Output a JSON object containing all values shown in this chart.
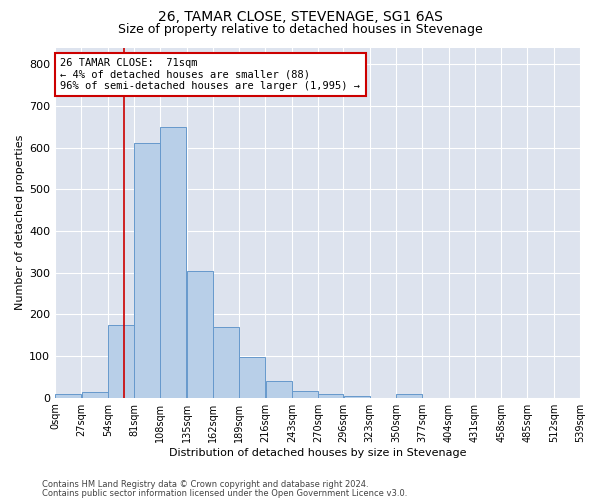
{
  "title": "26, TAMAR CLOSE, STEVENAGE, SG1 6AS",
  "subtitle": "Size of property relative to detached houses in Stevenage",
  "xlabel": "Distribution of detached houses by size in Stevenage",
  "ylabel": "Number of detached properties",
  "bar_color": "#b8cfe8",
  "bar_edge_color": "#6699cc",
  "background_color": "#dde3ee",
  "grid_color": "white",
  "annotation_box_color": "#cc0000",
  "vline_color": "#cc0000",
  "vline_x": 71,
  "bin_edges": [
    0,
    27,
    54,
    81,
    108,
    135,
    162,
    189,
    216,
    243,
    270,
    296,
    323,
    350,
    377,
    404,
    431,
    458,
    485,
    512,
    539
  ],
  "bar_heights": [
    8,
    14,
    175,
    610,
    650,
    305,
    170,
    97,
    40,
    15,
    8,
    5,
    0,
    8,
    0,
    0,
    0,
    0,
    0,
    0
  ],
  "annotation_title": "26 TAMAR CLOSE:  71sqm",
  "annotation_line1": "← 4% of detached houses are smaller (88)",
  "annotation_line2": "96% of semi-detached houses are larger (1,995) →",
  "ylim": [
    0,
    840
  ],
  "yticks": [
    0,
    100,
    200,
    300,
    400,
    500,
    600,
    700,
    800
  ],
  "footer_line1": "Contains HM Land Registry data © Crown copyright and database right 2024.",
  "footer_line2": "Contains public sector information licensed under the Open Government Licence v3.0.",
  "tick_labels": [
    "0sqm",
    "27sqm",
    "54sqm",
    "81sqm",
    "108sqm",
    "135sqm",
    "162sqm",
    "189sqm",
    "216sqm",
    "243sqm",
    "270sqm",
    "296sqm",
    "323sqm",
    "350sqm",
    "377sqm",
    "404sqm",
    "431sqm",
    "458sqm",
    "485sqm",
    "512sqm",
    "539sqm"
  ],
  "title_fontsize": 10,
  "subtitle_fontsize": 9,
  "ylabel_fontsize": 8,
  "xlabel_fontsize": 8,
  "tick_fontsize": 7,
  "ytick_fontsize": 8,
  "ann_fontsize": 7.5
}
